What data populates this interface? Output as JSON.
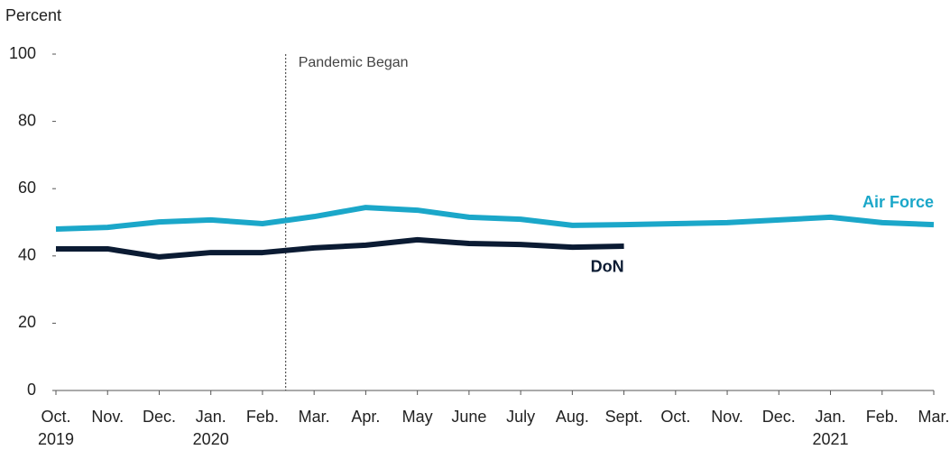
{
  "chart_data": {
    "type": "line",
    "y_axis_label": "Percent",
    "annotation": "Pandemic Began",
    "categories": [
      "Oct.\n2019",
      "Nov.",
      "Dec.",
      "Jan.\n2020",
      "Feb.",
      "Mar.",
      "Apr.",
      "May",
      "June",
      "July",
      "Aug.",
      "Sept.",
      "Oct.",
      "Nov.",
      "Dec.",
      "Jan.\n2021",
      "Feb.",
      "Mar."
    ],
    "series": [
      {
        "name": "Air Force",
        "color": "#1ba7c9",
        "values": [
          48.0,
          48.5,
          50.1,
          50.7,
          49.6,
          51.7,
          54.4,
          53.6,
          51.5,
          50.9,
          49.1,
          49.3,
          49.6,
          49.9,
          50.7,
          51.5,
          49.9,
          49.3
        ]
      },
      {
        "name": "DoN",
        "color": "#0b1b33",
        "values": [
          42.1,
          42.1,
          39.7,
          41.0,
          41.0,
          42.4,
          43.2,
          44.8,
          43.7,
          43.4,
          42.6,
          42.9,
          null,
          null,
          null,
          null,
          null,
          null
        ]
      }
    ],
    "ylim": [
      0,
      100
    ],
    "yticks": [
      0,
      20,
      40,
      60,
      80,
      100
    ],
    "grid": false
  }
}
